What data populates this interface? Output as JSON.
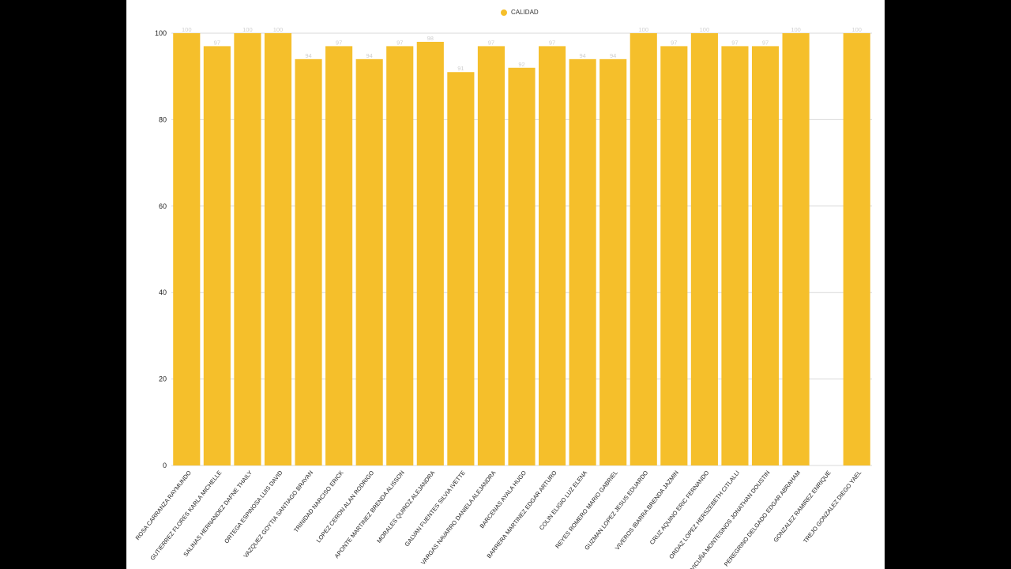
{
  "colors": {
    "bar": "#f5bf2b",
    "grid": "#d9d9d9",
    "axis_text": "#222222",
    "value_label": "#cfcfcf",
    "background": "#ffffff",
    "letterbox": "#000000"
  },
  "chart_data": {
    "type": "bar",
    "legend": {
      "label": "CALIDAD",
      "position": "top-center"
    },
    "ylim": [
      0,
      100
    ],
    "yticks": [
      0,
      20,
      40,
      60,
      80,
      100
    ],
    "grid": true,
    "categories": [
      "ROSA CARRANZA RAYMUNDO",
      "GUTIERREZ FLORES KARLA MICHELLE",
      "SALINAS HERNANDEZ DAFNE THAILY",
      "ORTEGA ESPINOSA LUIS DAVID",
      "VAZQUEZ GOYTIA SANTIAGO BRAYAN",
      "TRINIDAD NARCISO ERICK",
      "LOPEZ CERON ALAN RODRIGO",
      "APONTE MARTINEZ BRENDA ALISSON",
      "MORALES QUIROZ ALEJANDRA",
      "GALVAN FUENTES SILVIA IVETTE",
      "VARGAS NAVARRO DANIELA ALEJANDRA",
      "BARCENAS AYALA HUGO",
      "BARRERA MARTINEZ EDGAR ARTURO",
      "COLIN ELIGIO LUZ ELENA",
      "REYES ROMERO MARIO GABRIEL",
      "GUZMAN LOPEZ JESUS EDUARDO",
      "VIVEROS IBARRA BRENDA JAZMIN",
      "CRUZ AQUINO ERIC FERNANDO",
      "ORDAZ LOPEZ HERSZEBETH CITLALLI",
      "VICUÑA MONTESINOS JONATHAN DOUSTIN",
      "PEREGRINO DELGADO EDGAR ABRAHAM",
      "GONZALEZ RAMIREZ ENRIQUE",
      "TREJO GONZALEZ DIEGO YAEL"
    ],
    "series": [
      {
        "name": "CALIDAD",
        "values": [
          100,
          97,
          100,
          100,
          94,
          97,
          94,
          97,
          98,
          91,
          97,
          92,
          97,
          94,
          94,
          100,
          97,
          100,
          97,
          97,
          100,
          null,
          100
        ]
      }
    ]
  }
}
